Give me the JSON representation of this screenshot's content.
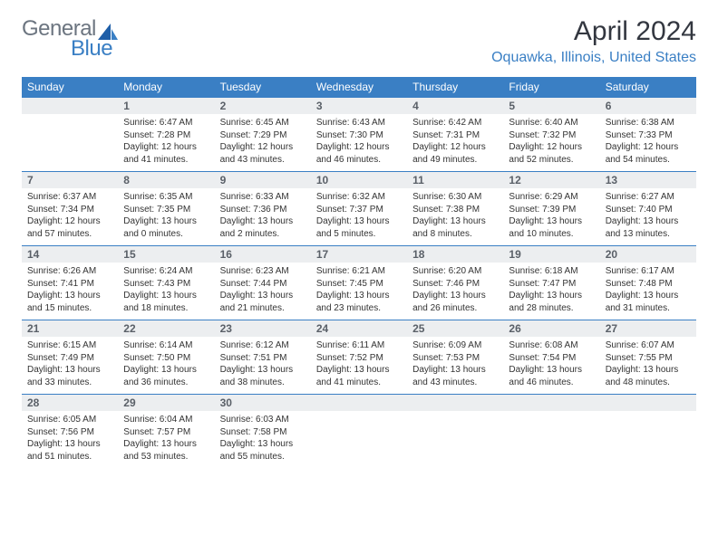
{
  "brand": {
    "part1": "General",
    "part2": "Blue"
  },
  "title": "April 2024",
  "location": "Oquawka, Illinois, United States",
  "colors": {
    "accent": "#3a7fc4",
    "header_bg": "#3a7fc4",
    "header_text": "#ffffff",
    "daynum_bg": "#eceef0",
    "body_text": "#333333",
    "logo_gray": "#6c7580"
  },
  "weekdays": [
    "Sunday",
    "Monday",
    "Tuesday",
    "Wednesday",
    "Thursday",
    "Friday",
    "Saturday"
  ],
  "weeks": [
    [
      {
        "n": "",
        "lines": []
      },
      {
        "n": "1",
        "lines": [
          "Sunrise: 6:47 AM",
          "Sunset: 7:28 PM",
          "Daylight: 12 hours and 41 minutes."
        ]
      },
      {
        "n": "2",
        "lines": [
          "Sunrise: 6:45 AM",
          "Sunset: 7:29 PM",
          "Daylight: 12 hours and 43 minutes."
        ]
      },
      {
        "n": "3",
        "lines": [
          "Sunrise: 6:43 AM",
          "Sunset: 7:30 PM",
          "Daylight: 12 hours and 46 minutes."
        ]
      },
      {
        "n": "4",
        "lines": [
          "Sunrise: 6:42 AM",
          "Sunset: 7:31 PM",
          "Daylight: 12 hours and 49 minutes."
        ]
      },
      {
        "n": "5",
        "lines": [
          "Sunrise: 6:40 AM",
          "Sunset: 7:32 PM",
          "Daylight: 12 hours and 52 minutes."
        ]
      },
      {
        "n": "6",
        "lines": [
          "Sunrise: 6:38 AM",
          "Sunset: 7:33 PM",
          "Daylight: 12 hours and 54 minutes."
        ]
      }
    ],
    [
      {
        "n": "7",
        "lines": [
          "Sunrise: 6:37 AM",
          "Sunset: 7:34 PM",
          "Daylight: 12 hours and 57 minutes."
        ]
      },
      {
        "n": "8",
        "lines": [
          "Sunrise: 6:35 AM",
          "Sunset: 7:35 PM",
          "Daylight: 13 hours and 0 minutes."
        ]
      },
      {
        "n": "9",
        "lines": [
          "Sunrise: 6:33 AM",
          "Sunset: 7:36 PM",
          "Daylight: 13 hours and 2 minutes."
        ]
      },
      {
        "n": "10",
        "lines": [
          "Sunrise: 6:32 AM",
          "Sunset: 7:37 PM",
          "Daylight: 13 hours and 5 minutes."
        ]
      },
      {
        "n": "11",
        "lines": [
          "Sunrise: 6:30 AM",
          "Sunset: 7:38 PM",
          "Daylight: 13 hours and 8 minutes."
        ]
      },
      {
        "n": "12",
        "lines": [
          "Sunrise: 6:29 AM",
          "Sunset: 7:39 PM",
          "Daylight: 13 hours and 10 minutes."
        ]
      },
      {
        "n": "13",
        "lines": [
          "Sunrise: 6:27 AM",
          "Sunset: 7:40 PM",
          "Daylight: 13 hours and 13 minutes."
        ]
      }
    ],
    [
      {
        "n": "14",
        "lines": [
          "Sunrise: 6:26 AM",
          "Sunset: 7:41 PM",
          "Daylight: 13 hours and 15 minutes."
        ]
      },
      {
        "n": "15",
        "lines": [
          "Sunrise: 6:24 AM",
          "Sunset: 7:43 PM",
          "Daylight: 13 hours and 18 minutes."
        ]
      },
      {
        "n": "16",
        "lines": [
          "Sunrise: 6:23 AM",
          "Sunset: 7:44 PM",
          "Daylight: 13 hours and 21 minutes."
        ]
      },
      {
        "n": "17",
        "lines": [
          "Sunrise: 6:21 AM",
          "Sunset: 7:45 PM",
          "Daylight: 13 hours and 23 minutes."
        ]
      },
      {
        "n": "18",
        "lines": [
          "Sunrise: 6:20 AM",
          "Sunset: 7:46 PM",
          "Daylight: 13 hours and 26 minutes."
        ]
      },
      {
        "n": "19",
        "lines": [
          "Sunrise: 6:18 AM",
          "Sunset: 7:47 PM",
          "Daylight: 13 hours and 28 minutes."
        ]
      },
      {
        "n": "20",
        "lines": [
          "Sunrise: 6:17 AM",
          "Sunset: 7:48 PM",
          "Daylight: 13 hours and 31 minutes."
        ]
      }
    ],
    [
      {
        "n": "21",
        "lines": [
          "Sunrise: 6:15 AM",
          "Sunset: 7:49 PM",
          "Daylight: 13 hours and 33 minutes."
        ]
      },
      {
        "n": "22",
        "lines": [
          "Sunrise: 6:14 AM",
          "Sunset: 7:50 PM",
          "Daylight: 13 hours and 36 minutes."
        ]
      },
      {
        "n": "23",
        "lines": [
          "Sunrise: 6:12 AM",
          "Sunset: 7:51 PM",
          "Daylight: 13 hours and 38 minutes."
        ]
      },
      {
        "n": "24",
        "lines": [
          "Sunrise: 6:11 AM",
          "Sunset: 7:52 PM",
          "Daylight: 13 hours and 41 minutes."
        ]
      },
      {
        "n": "25",
        "lines": [
          "Sunrise: 6:09 AM",
          "Sunset: 7:53 PM",
          "Daylight: 13 hours and 43 minutes."
        ]
      },
      {
        "n": "26",
        "lines": [
          "Sunrise: 6:08 AM",
          "Sunset: 7:54 PM",
          "Daylight: 13 hours and 46 minutes."
        ]
      },
      {
        "n": "27",
        "lines": [
          "Sunrise: 6:07 AM",
          "Sunset: 7:55 PM",
          "Daylight: 13 hours and 48 minutes."
        ]
      }
    ],
    [
      {
        "n": "28",
        "lines": [
          "Sunrise: 6:05 AM",
          "Sunset: 7:56 PM",
          "Daylight: 13 hours and 51 minutes."
        ]
      },
      {
        "n": "29",
        "lines": [
          "Sunrise: 6:04 AM",
          "Sunset: 7:57 PM",
          "Daylight: 13 hours and 53 minutes."
        ]
      },
      {
        "n": "30",
        "lines": [
          "Sunrise: 6:03 AM",
          "Sunset: 7:58 PM",
          "Daylight: 13 hours and 55 minutes."
        ]
      },
      {
        "n": "",
        "lines": []
      },
      {
        "n": "",
        "lines": []
      },
      {
        "n": "",
        "lines": []
      },
      {
        "n": "",
        "lines": []
      }
    ]
  ]
}
